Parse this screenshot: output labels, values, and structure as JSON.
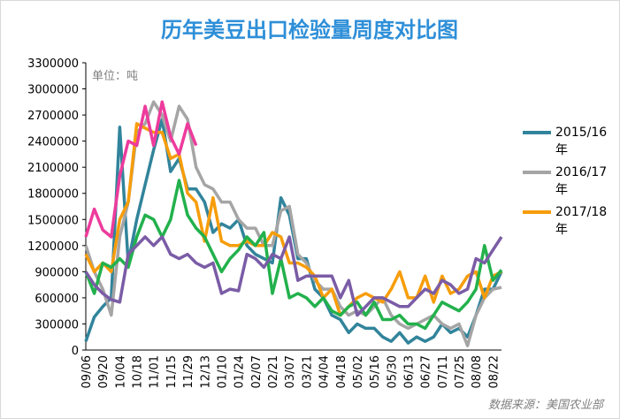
{
  "chart_data": {
    "type": "line",
    "title": "历年美豆出口检验量周度对比图",
    "unit_note": "单位：吨",
    "source": "数据来源：美国农业部",
    "categories": [
      "09/06",
      null,
      "09/20",
      null,
      "10/04",
      null,
      "10/18",
      null,
      "11/01",
      null,
      "11/15",
      null,
      "11/29",
      null,
      "12/13",
      null,
      "01/10",
      null,
      "01/24",
      null,
      "02/07",
      null,
      "02/21",
      null,
      "03/07",
      null,
      "03/21",
      null,
      "04/04",
      null,
      "04/18",
      null,
      "05/02",
      null,
      "05/16",
      null,
      "05/30",
      null,
      "06/13",
      null,
      "06/27",
      null,
      "07/11",
      null,
      "07/25",
      null,
      "08/08",
      null,
      "08/22",
      null
    ],
    "ylim": [
      0,
      3300000
    ],
    "yticks": [
      0,
      300000,
      600000,
      900000,
      1200000,
      1500000,
      1800000,
      2100000,
      2400000,
      2700000,
      3000000,
      3300000
    ],
    "series": [
      {
        "name": "2015/16年",
        "color": "#31849b",
        "values": [
          100000,
          380000,
          500000,
          600000,
          2560000,
          1000000,
          1500000,
          1900000,
          2300000,
          2650000,
          2050000,
          2200000,
          1850000,
          1850000,
          1700000,
          1350000,
          1450000,
          1400000,
          1500000,
          1200000,
          1100000,
          1050000,
          1000000,
          1750000,
          1550000,
          1050000,
          1050000,
          700000,
          600000,
          400000,
          350000,
          200000,
          300000,
          250000,
          250000,
          150000,
          100000,
          200000,
          80000,
          150000,
          100000,
          150000,
          300000,
          200000,
          250000,
          150000,
          400000,
          700000,
          700000,
          900000
        ]
      },
      {
        "name": "2016/17年",
        "color": "#a5a5a5",
        "values": [
          1200000,
          900000,
          700000,
          400000,
          1300000,
          1700000,
          2500000,
          2600000,
          2850000,
          2700000,
          2400000,
          2800000,
          2650000,
          2100000,
          1900000,
          1850000,
          1700000,
          1700000,
          1500000,
          1400000,
          1400000,
          1200000,
          1200000,
          1600000,
          1650000,
          1100000,
          1000000,
          800000,
          700000,
          700000,
          500000,
          400000,
          450000,
          400000,
          500000,
          600000,
          400000,
          300000,
          250000,
          300000,
          350000,
          400000,
          300000,
          250000,
          300000,
          50000,
          400000,
          600000,
          700000,
          720000
        ]
      },
      {
        "name": "2017/18年",
        "color": "#f79d0a",
        "values": [
          1100000,
          900000,
          1000000,
          900000,
          1500000,
          1700000,
          2600000,
          2550000,
          2500000,
          2500000,
          2200000,
          2250000,
          1800000,
          1700000,
          1250000,
          1750000,
          1250000,
          1200000,
          1200000,
          1250000,
          1200000,
          1200000,
          1350000,
          1300000,
          1000000,
          1000000,
          950000,
          850000,
          600000,
          700000,
          400000,
          500000,
          600000,
          650000,
          600000,
          550000,
          700000,
          900000,
          600000,
          600000,
          850000,
          550000,
          850000,
          650000,
          700000,
          850000,
          900000,
          600000,
          850000,
          900000
        ]
      },
      {
        "color": "#22b14c",
        "values": [
          900000,
          650000,
          1000000,
          950000,
          1050000,
          950000,
          1300000,
          1550000,
          1500000,
          1300000,
          1500000,
          1950000,
          1550000,
          1400000,
          1300000,
          1100000,
          900000,
          1050000,
          1150000,
          1300000,
          1200000,
          1350000,
          650000,
          1050000,
          600000,
          650000,
          600000,
          500000,
          600000,
          450000,
          400000,
          500000,
          550000,
          400000,
          550000,
          350000,
          350000,
          400000,
          300000,
          300000,
          250000,
          400000,
          550000,
          500000,
          450000,
          550000,
          700000,
          1200000,
          800000,
          920000
        ]
      },
      {
        "color": "#7a5ca6",
        "values": [
          900000,
          750000,
          650000,
          580000,
          550000,
          1100000,
          1200000,
          1300000,
          1200000,
          1300000,
          1100000,
          1050000,
          1100000,
          1000000,
          950000,
          1000000,
          650000,
          700000,
          680000,
          1100000,
          1050000,
          950000,
          1100000,
          1050000,
          1300000,
          800000,
          850000,
          850000,
          850000,
          850000,
          600000,
          800000,
          400000,
          500000,
          600000,
          600000,
          550000,
          500000,
          500000,
          600000,
          700000,
          650000,
          800000,
          750000,
          650000,
          700000,
          1050000,
          1000000,
          1150000,
          1300000
        ]
      },
      {
        "color": "#ed3b9c",
        "values": [
          1300000,
          1620000,
          1380000,
          1300000,
          2000000,
          2400000,
          2350000,
          2800000,
          2350000,
          2850000,
          2450000,
          2250000,
          2600000,
          2350000,
          null,
          null,
          null,
          null,
          null,
          null,
          null,
          null,
          null,
          null,
          null,
          null,
          null,
          null,
          null,
          null,
          null,
          null,
          null,
          null,
          null,
          null,
          null,
          null,
          null,
          null,
          null,
          null,
          null,
          null,
          null,
          null,
          null,
          null,
          null,
          null
        ]
      }
    ],
    "legend": "right",
    "grid": false
  }
}
